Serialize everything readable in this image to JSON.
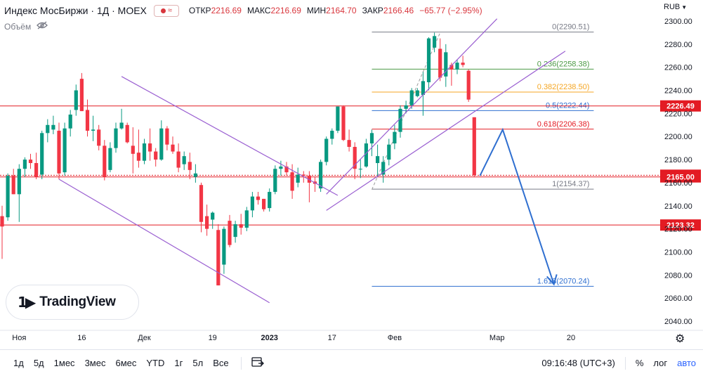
{
  "header": {
    "title": "Индекс МосБиржи · 1Д · MOEX",
    "open_label": "ОТКР",
    "open": "2216.69",
    "high_label": "МАКС",
    "high": "2216.69",
    "low_label": "МИН",
    "low": "2164.70",
    "close_label": "ЗАКР",
    "close": "2166.46",
    "change": "−65.77 (−2.95%)",
    "volume_label": "Объём",
    "currency": "RUB"
  },
  "logo": {
    "text": "TradingView"
  },
  "bottom_bar": {
    "ranges": [
      "1д",
      "5д",
      "1мес",
      "3мес",
      "6мес",
      "YTD",
      "1г",
      "5л",
      "Все"
    ],
    "time": "09:16:48 (UTC+3)",
    "percent": "%",
    "log": "лог",
    "auto": "авто"
  },
  "colors": {
    "up": "#089981",
    "down": "#f23645",
    "level_red": "#e31b23",
    "channel": "#9a5fd1",
    "projection": "#2f6fd0",
    "fib_gray": "#787b86",
    "fib_green": "#4c9a45",
    "fib_orange": "#f5a623",
    "fib_blue": "#2f6fd0",
    "fib_red": "#e31b23"
  },
  "chart_data": {
    "type": "candlestick",
    "ylim": [
      2035,
      2304
    ],
    "y_ticks": [
      2040,
      2060,
      2080,
      2100,
      2120,
      2140,
      2160,
      2180,
      2200,
      2220,
      2240,
      2260,
      2280,
      2300
    ],
    "x_ticks": [
      {
        "label": "Ноя",
        "index": 3
      },
      {
        "label": "16",
        "index": 14
      },
      {
        "label": "Дек",
        "index": 25
      },
      {
        "label": "19",
        "index": 37
      },
      {
        "label": "2023",
        "index": 47
      },
      {
        "label": "17",
        "index": 58
      },
      {
        "label": "Фев",
        "index": 69
      },
      {
        "label": "Мар",
        "index": 87
      },
      {
        "label": "20",
        "index": 100
      }
    ],
    "candles": [
      {
        "o": 2131,
        "h": 2140,
        "l": 2094,
        "c": 2122
      },
      {
        "o": 2130,
        "h": 2168,
        "l": 2127,
        "c": 2166
      },
      {
        "o": 2166,
        "h": 2172,
        "l": 2150,
        "c": 2150
      },
      {
        "o": 2150,
        "h": 2176,
        "l": 2126,
        "c": 2172
      },
      {
        "o": 2172,
        "h": 2182,
        "l": 2165,
        "c": 2180
      },
      {
        "o": 2180,
        "h": 2185,
        "l": 2172,
        "c": 2177
      },
      {
        "o": 2177,
        "h": 2186,
        "l": 2163,
        "c": 2165
      },
      {
        "o": 2167,
        "h": 2205,
        "l": 2163,
        "c": 2203
      },
      {
        "o": 2203,
        "h": 2215,
        "l": 2195,
        "c": 2210
      },
      {
        "o": 2206,
        "h": 2218,
        "l": 2202,
        "c": 2210
      },
      {
        "o": 2205,
        "h": 2212,
        "l": 2163,
        "c": 2168
      },
      {
        "o": 2169,
        "h": 2212,
        "l": 2166,
        "c": 2207
      },
      {
        "o": 2207,
        "h": 2223,
        "l": 2200,
        "c": 2219
      },
      {
        "o": 2223,
        "h": 2245,
        "l": 2218,
        "c": 2240
      },
      {
        "o": 2250,
        "h": 2255,
        "l": 2222,
        "c": 2222
      },
      {
        "o": 2223,
        "h": 2232,
        "l": 2200,
        "c": 2205
      },
      {
        "o": 2205,
        "h": 2218,
        "l": 2196,
        "c": 2206
      },
      {
        "o": 2206,
        "h": 2210,
        "l": 2188,
        "c": 2192
      },
      {
        "o": 2192,
        "h": 2197,
        "l": 2162,
        "c": 2165
      },
      {
        "o": 2171,
        "h": 2195,
        "l": 2169,
        "c": 2190
      },
      {
        "o": 2190,
        "h": 2212,
        "l": 2186,
        "c": 2207
      },
      {
        "o": 2207,
        "h": 2224,
        "l": 2206,
        "c": 2212
      },
      {
        "o": 2210,
        "h": 2212,
        "l": 2194,
        "c": 2195
      },
      {
        "o": 2192,
        "h": 2208,
        "l": 2168,
        "c": 2185
      },
      {
        "o": 2186,
        "h": 2206,
        "l": 2173,
        "c": 2179
      },
      {
        "o": 2179,
        "h": 2198,
        "l": 2176,
        "c": 2194
      },
      {
        "o": 2194,
        "h": 2207,
        "l": 2179,
        "c": 2187
      },
      {
        "o": 2187,
        "h": 2190,
        "l": 2174,
        "c": 2180
      },
      {
        "o": 2180,
        "h": 2214,
        "l": 2179,
        "c": 2207
      },
      {
        "o": 2207,
        "h": 2209,
        "l": 2188,
        "c": 2193
      },
      {
        "o": 2193,
        "h": 2200,
        "l": 2185,
        "c": 2187
      },
      {
        "o": 2187,
        "h": 2194,
        "l": 2169,
        "c": 2173
      },
      {
        "o": 2176,
        "h": 2187,
        "l": 2171,
        "c": 2183
      },
      {
        "o": 2178,
        "h": 2186,
        "l": 2163,
        "c": 2171
      },
      {
        "o": 2165,
        "h": 2176,
        "l": 2160,
        "c": 2168
      },
      {
        "o": 2158,
        "h": 2160,
        "l": 2117,
        "c": 2126
      },
      {
        "o": 2131,
        "h": 2141,
        "l": 2114,
        "c": 2120
      },
      {
        "o": 2128,
        "h": 2135,
        "l": 2120,
        "c": 2134
      },
      {
        "o": 2119,
        "h": 2124,
        "l": 2071,
        "c": 2071
      },
      {
        "o": 2089,
        "h": 2122,
        "l": 2081,
        "c": 2120
      },
      {
        "o": 2127,
        "h": 2132,
        "l": 2104,
        "c": 2106
      },
      {
        "o": 2113,
        "h": 2127,
        "l": 2108,
        "c": 2124
      },
      {
        "o": 2124,
        "h": 2133,
        "l": 2115,
        "c": 2121
      },
      {
        "o": 2121,
        "h": 2139,
        "l": 2118,
        "c": 2136
      },
      {
        "o": 2136,
        "h": 2152,
        "l": 2130,
        "c": 2148
      },
      {
        "o": 2148,
        "h": 2152,
        "l": 2141,
        "c": 2145
      },
      {
        "o": 2146,
        "h": 2146,
        "l": 2135,
        "c": 2137
      },
      {
        "o": 2138,
        "h": 2155,
        "l": 2135,
        "c": 2152
      },
      {
        "o": 2152,
        "h": 2175,
        "l": 2150,
        "c": 2172
      },
      {
        "o": 2172,
        "h": 2179,
        "l": 2166,
        "c": 2174
      },
      {
        "o": 2174,
        "h": 2178,
        "l": 2166,
        "c": 2169
      },
      {
        "o": 2169,
        "h": 2176,
        "l": 2146,
        "c": 2153
      },
      {
        "o": 2160,
        "h": 2173,
        "l": 2156,
        "c": 2167
      },
      {
        "o": 2167,
        "h": 2170,
        "l": 2160,
        "c": 2166
      },
      {
        "o": 2166,
        "h": 2170,
        "l": 2143,
        "c": 2160
      },
      {
        "o": 2161,
        "h": 2165,
        "l": 2152,
        "c": 2159
      },
      {
        "o": 2155,
        "h": 2180,
        "l": 2152,
        "c": 2178
      },
      {
        "o": 2178,
        "h": 2200,
        "l": 2175,
        "c": 2198
      },
      {
        "o": 2198,
        "h": 2207,
        "l": 2193,
        "c": 2205
      },
      {
        "o": 2205,
        "h": 2226,
        "l": 2203,
        "c": 2226
      },
      {
        "o": 2226,
        "h": 2227,
        "l": 2196,
        "c": 2197
      },
      {
        "o": 2197,
        "h": 2206,
        "l": 2187,
        "c": 2191
      },
      {
        "o": 2191,
        "h": 2195,
        "l": 2163,
        "c": 2172
      },
      {
        "o": 2172,
        "h": 2180,
        "l": 2164,
        "c": 2172
      },
      {
        "o": 2174,
        "h": 2198,
        "l": 2173,
        "c": 2194
      },
      {
        "o": 2194,
        "h": 2206,
        "l": 2183,
        "c": 2203
      },
      {
        "o": 2177,
        "h": 2193,
        "l": 2165,
        "c": 2183
      },
      {
        "o": 2167,
        "h": 2183,
        "l": 2160,
        "c": 2178
      },
      {
        "o": 2180,
        "h": 2198,
        "l": 2175,
        "c": 2193
      },
      {
        "o": 2194,
        "h": 2210,
        "l": 2189,
        "c": 2204
      },
      {
        "o": 2204,
        "h": 2227,
        "l": 2199,
        "c": 2224
      },
      {
        "o": 2224,
        "h": 2231,
        "l": 2220,
        "c": 2227
      },
      {
        "o": 2227,
        "h": 2242,
        "l": 2224,
        "c": 2240
      },
      {
        "o": 2235,
        "h": 2242,
        "l": 2234,
        "c": 2240
      },
      {
        "o": 2236,
        "h": 2256,
        "l": 2218,
        "c": 2248
      },
      {
        "o": 2247,
        "h": 2286,
        "l": 2240,
        "c": 2285
      },
      {
        "o": 2277,
        "h": 2290,
        "l": 2273,
        "c": 2287
      },
      {
        "o": 2276,
        "h": 2285,
        "l": 2248,
        "c": 2251
      },
      {
        "o": 2252,
        "h": 2280,
        "l": 2243,
        "c": 2273
      },
      {
        "o": 2262,
        "h": 2264,
        "l": 2244,
        "c": 2258
      },
      {
        "o": 2258,
        "h": 2267,
        "l": 2254,
        "c": 2264
      },
      {
        "o": 2264,
        "h": 2270,
        "l": 2260,
        "c": 2262
      },
      {
        "o": 2257,
        "h": 2258,
        "l": 2230,
        "c": 2232
      },
      {
        "o": 2216.69,
        "h": 2216.69,
        "l": 2164.7,
        "c": 2166.46
      }
    ],
    "horizontal_levels": [
      {
        "price": 2226.49,
        "label": "2226.49"
      },
      {
        "price": 2166.46,
        "label": "2166.46",
        "dotted": true
      },
      {
        "price": 2165.0,
        "label": "2165.00"
      },
      {
        "price": 2123.32,
        "label": "2123.32"
      }
    ],
    "fibonacci": [
      {
        "ratio": "0",
        "price": 2290.51,
        "label": "0(2290.51)",
        "color": "gray"
      },
      {
        "ratio": "0.236",
        "price": 2258.38,
        "label": "0.236(2258.38)",
        "color": "green"
      },
      {
        "ratio": "0.382",
        "price": 2238.5,
        "label": "0.382(2238.50)",
        "color": "orange"
      },
      {
        "ratio": "0.5",
        "price": 2222.44,
        "label": "0.5(2222.44)",
        "color": "blue"
      },
      {
        "ratio": "0.618",
        "price": 2206.38,
        "label": "0.618(2206.38)",
        "color": "red"
      },
      {
        "ratio": "1",
        "price": 2154.37,
        "label": "1(2154.37)",
        "color": "gray"
      },
      {
        "ratio": "1.618",
        "price": 2070.24,
        "label": "1.618(2070.24)",
        "color": "blue"
      }
    ],
    "fib_range": {
      "x_start": 65,
      "x_end": 104
    },
    "channels": [
      {
        "lines": [
          [
            [
              21,
              2252
            ],
            [
              59,
              2149
            ]
          ],
          [
            [
              10,
              2163
            ],
            [
              47,
              2056
            ]
          ]
        ]
      },
      {
        "lines": [
          [
            [
              57,
              2150
            ],
            [
              87,
              2302
            ]
          ],
          [
            [
              57,
              2136
            ],
            [
              99,
              2274
            ]
          ]
        ]
      }
    ],
    "projection": [
      [
        84,
        2166
      ],
      [
        88,
        2206
      ],
      [
        97,
        2072
      ]
    ],
    "fib_anchor": [
      [
        65,
        2154
      ],
      [
        77,
        2290
      ]
    ]
  }
}
